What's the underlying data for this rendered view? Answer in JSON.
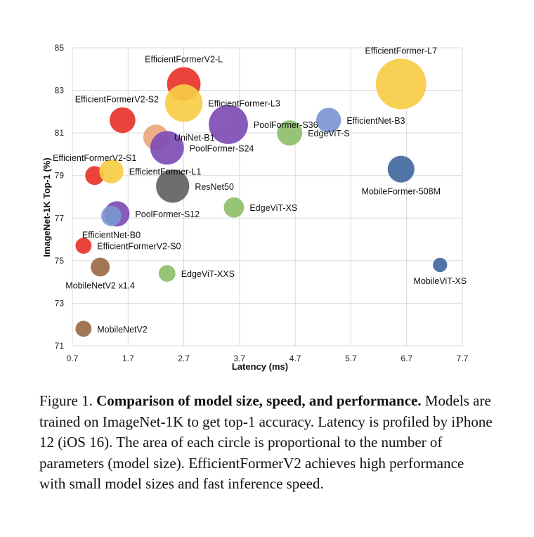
{
  "chart_data": {
    "type": "scatter",
    "xlabel": "Latency (ms)",
    "ylabel": "ImageNet-1K Top-1 (%)",
    "xlim": [
      0.7,
      7.7
    ],
    "ylim": [
      71,
      85
    ],
    "xticks": [
      "0.7",
      "1.7",
      "2.7",
      "3.7",
      "4.7",
      "5.7",
      "6.7",
      "7.7"
    ],
    "yticks": [
      "71",
      "73",
      "75",
      "77",
      "79",
      "81",
      "83",
      "85"
    ],
    "grid": true,
    "points": [
      {
        "name": "EfficientFormerV2-L",
        "x": 2.7,
        "y": 83.3,
        "size_rel": 0.44,
        "color": "#e8332a",
        "label_pos": "above"
      },
      {
        "name": "EfficientFormer-L7",
        "x": 6.6,
        "y": 83.3,
        "size_rel": 1.0,
        "color": "#f7cc45",
        "label_pos": "above"
      },
      {
        "name": "EfficientFormer-L3",
        "x": 2.7,
        "y": 82.4,
        "size_rel": 0.55,
        "color": "#f7cc45",
        "label_pos": "right"
      },
      {
        "name": "EfficientFormerV2-S2",
        "x": 1.6,
        "y": 81.6,
        "size_rel": 0.26,
        "color": "#e8332a",
        "label_pos": "above-left"
      },
      {
        "name": "PoolFormer-S36",
        "x": 3.5,
        "y": 81.4,
        "size_rel": 0.6,
        "color": "#7e4cb4",
        "label_pos": "right"
      },
      {
        "name": "EfficientNet-B3",
        "x": 5.3,
        "y": 81.6,
        "size_rel": 0.24,
        "color": "#7b96d0",
        "label_pos": "right"
      },
      {
        "name": "EdgeViT-S",
        "x": 4.6,
        "y": 81.0,
        "size_rel": 0.25,
        "color": "#8fbf6b",
        "label_pos": "right"
      },
      {
        "name": "UniNet-B1",
        "x": 2.2,
        "y": 80.8,
        "size_rel": 0.25,
        "color": "#eaa77c",
        "label_pos": "right"
      },
      {
        "name": "PoolFormer-S24",
        "x": 2.4,
        "y": 80.3,
        "size_rel": 0.44,
        "color": "#7e4cb4",
        "label_pos": "right"
      },
      {
        "name": "MobileFormer-508M",
        "x": 6.6,
        "y": 79.3,
        "size_rel": 0.28,
        "color": "#42699e",
        "label_pos": "below"
      },
      {
        "name": "EfficientFormerV2-S1",
        "x": 1.1,
        "y": 79.0,
        "size_rel": 0.14,
        "color": "#e8332a",
        "label_pos": "above"
      },
      {
        "name": "EfficientFormer-L1",
        "x": 1.4,
        "y": 79.2,
        "size_rel": 0.23,
        "color": "#f7cc45",
        "label_pos": "right"
      },
      {
        "name": "ResNet50",
        "x": 2.5,
        "y": 78.5,
        "size_rel": 0.43,
        "color": "#626262",
        "label_pos": "right"
      },
      {
        "name": "EdgeViT-XS",
        "x": 3.6,
        "y": 77.5,
        "size_rel": 0.16,
        "color": "#8fbf6b",
        "label_pos": "right"
      },
      {
        "name": "PoolFormer-S12",
        "x": 1.5,
        "y": 77.2,
        "size_rel": 0.25,
        "color": "#7e4cb4",
        "label_pos": "right"
      },
      {
        "name": "EfficientNet-B0",
        "x": 1.4,
        "y": 77.1,
        "size_rel": 0.16,
        "color": "#7b96d0",
        "label_pos": "below"
      },
      {
        "name": "EfficientFormerV2-S0",
        "x": 0.9,
        "y": 75.7,
        "size_rel": 0.1,
        "color": "#e8332a",
        "label_pos": "right"
      },
      {
        "name": "MobileNetV2 x1.4",
        "x": 1.2,
        "y": 74.7,
        "size_rel": 0.14,
        "color": "#9b6b48",
        "label_pos": "below"
      },
      {
        "name": "EdgeViT-XXS",
        "x": 2.4,
        "y": 74.4,
        "size_rel": 0.11,
        "color": "#8fbf6b",
        "label_pos": "right"
      },
      {
        "name": "MobileViT-XS",
        "x": 7.3,
        "y": 74.8,
        "size_rel": 0.08,
        "color": "#42699e",
        "label_pos": "below"
      },
      {
        "name": "MobileNetV2",
        "x": 0.9,
        "y": 71.8,
        "size_rel": 0.1,
        "color": "#9b6b48",
        "label_pos": "right"
      }
    ]
  },
  "caption": {
    "figure_label": "Figure 1.",
    "bold_title": "Comparison of model size, speed, and performance.",
    "body": "Models are trained on ImageNet-1K to get top-1 accuracy. Latency is profiled by iPhone 12 (iOS 16). The area of each circle is proportional to the number of parameters (model size). EfficientFormerV2 achieves high performance with small model sizes and fast inference speed."
  }
}
